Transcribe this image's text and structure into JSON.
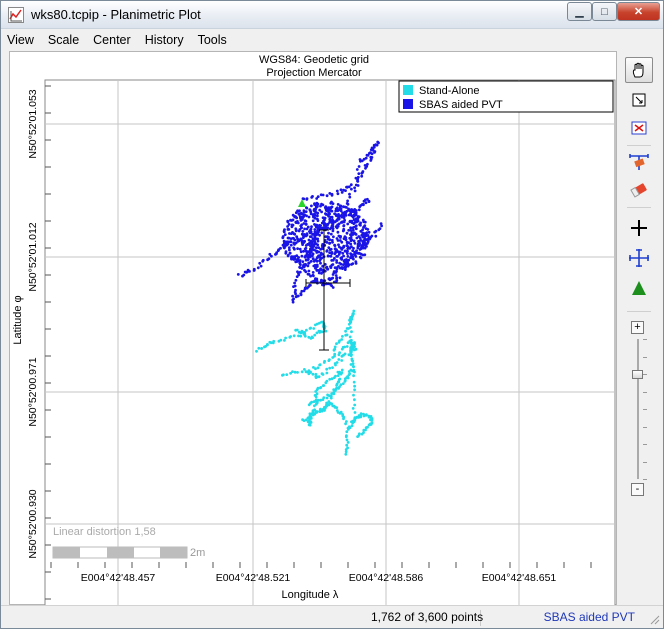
{
  "window": {
    "title": "wks80.tcpip - Planimetric Plot",
    "minimize_glyph": "▁",
    "maximize_glyph": "□",
    "close_glyph": "✕"
  },
  "menu": [
    "View",
    "Scale",
    "Center",
    "History",
    "Tools"
  ],
  "plot": {
    "header_line1": "WGS84: Geodetic grid",
    "header_line2": "Projection Mercator",
    "x_label": "Longitude λ",
    "y_label": "Latitude φ",
    "x_ticks": [
      "E004°42'48.457",
      "E004°42'48.521",
      "E004°42'48.586",
      "E004°42'48.651"
    ],
    "y_ticks": [
      "N50°52'01.053",
      "N50°52'01.012",
      "N50°52'00.971",
      "N50°52'00.930"
    ],
    "legend": [
      {
        "label": "Stand-Alone",
        "color": "#22dde8"
      },
      {
        "label": "SBAS aided PVT",
        "color": "#1a14e6"
      }
    ],
    "distortion_text": "Linear distortion 1,58",
    "scalebar_label": "2m",
    "marker_color": "#2bd42b"
  },
  "toolbar": [
    {
      "name": "pan-hand-icon"
    },
    {
      "name": "zoom-window-icon"
    },
    {
      "name": "zoom-extents-icon"
    },
    {
      "name": "measure-icon"
    },
    {
      "name": "eraser-icon"
    },
    {
      "name": "crosshair-icon"
    },
    {
      "name": "center-cross-icon"
    },
    {
      "name": "marker-triangle-icon"
    }
  ],
  "zoom_slider": {
    "plus": "+",
    "minus": "-",
    "level": 0.25
  },
  "status": {
    "points": "1,762 of 3,600 points",
    "mode": "SBAS aided PVT"
  }
}
